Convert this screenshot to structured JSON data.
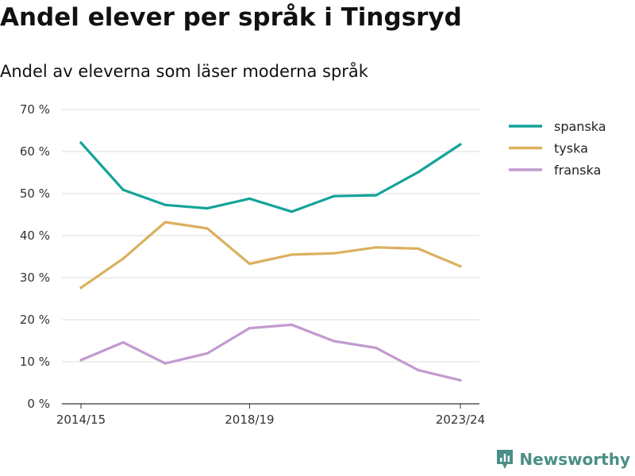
{
  "header": {
    "title": "Andel elever per språk i Tingsryd",
    "subtitle": "Andel av eleverna som läser moderna språk"
  },
  "brand": {
    "name": "Newsworthy",
    "icon": "newsworthy-logo-icon",
    "color": "#4a8f88"
  },
  "chart_data": {
    "type": "line",
    "title": "Andel elever per språk i Tingsryd",
    "subtitle": "Andel av eleverna som läser moderna språk",
    "x": [
      "2014/15",
      "2015/16",
      "2016/17",
      "2017/18",
      "2018/19",
      "2019/20",
      "2020/21",
      "2021/22",
      "2022/23",
      "2023/24"
    ],
    "x_tick_labels": [
      "2014/15",
      "2018/19",
      "2023/24"
    ],
    "y_tick_labels": [
      "0 %",
      "10 %",
      "20 %",
      "30 %",
      "40 %",
      "50 %",
      "60 %",
      "70 %"
    ],
    "ylim": [
      0,
      70
    ],
    "y_unit": "%",
    "grid": true,
    "legend_position": "top-right",
    "series": [
      {
        "name": "spanska",
        "color": "#14a39a",
        "values": [
          62.1,
          50.9,
          47.3,
          46.5,
          48.8,
          45.7,
          49.4,
          49.6,
          55.1,
          61.7
        ]
      },
      {
        "name": "tyska",
        "color": "#dbb05e",
        "values": [
          27.6,
          34.5,
          43.2,
          41.7,
          33.3,
          35.5,
          35.8,
          37.2,
          36.9,
          32.7
        ]
      },
      {
        "name": "franska",
        "color": "#c39ad0",
        "values": [
          10.4,
          14.6,
          9.6,
          12.0,
          18.0,
          18.8,
          14.9,
          13.3,
          8.0,
          5.6
        ]
      }
    ]
  }
}
